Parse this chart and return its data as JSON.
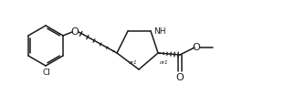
{
  "bg_color": "#ffffff",
  "line_color": "#1a1a1a",
  "line_width": 1.1,
  "font_size": 6.5,
  "fig_width": 3.12,
  "fig_height": 1.04,
  "dpi": 100,
  "xlim": [
    0,
    312
  ],
  "ylim": [
    0,
    104
  ]
}
